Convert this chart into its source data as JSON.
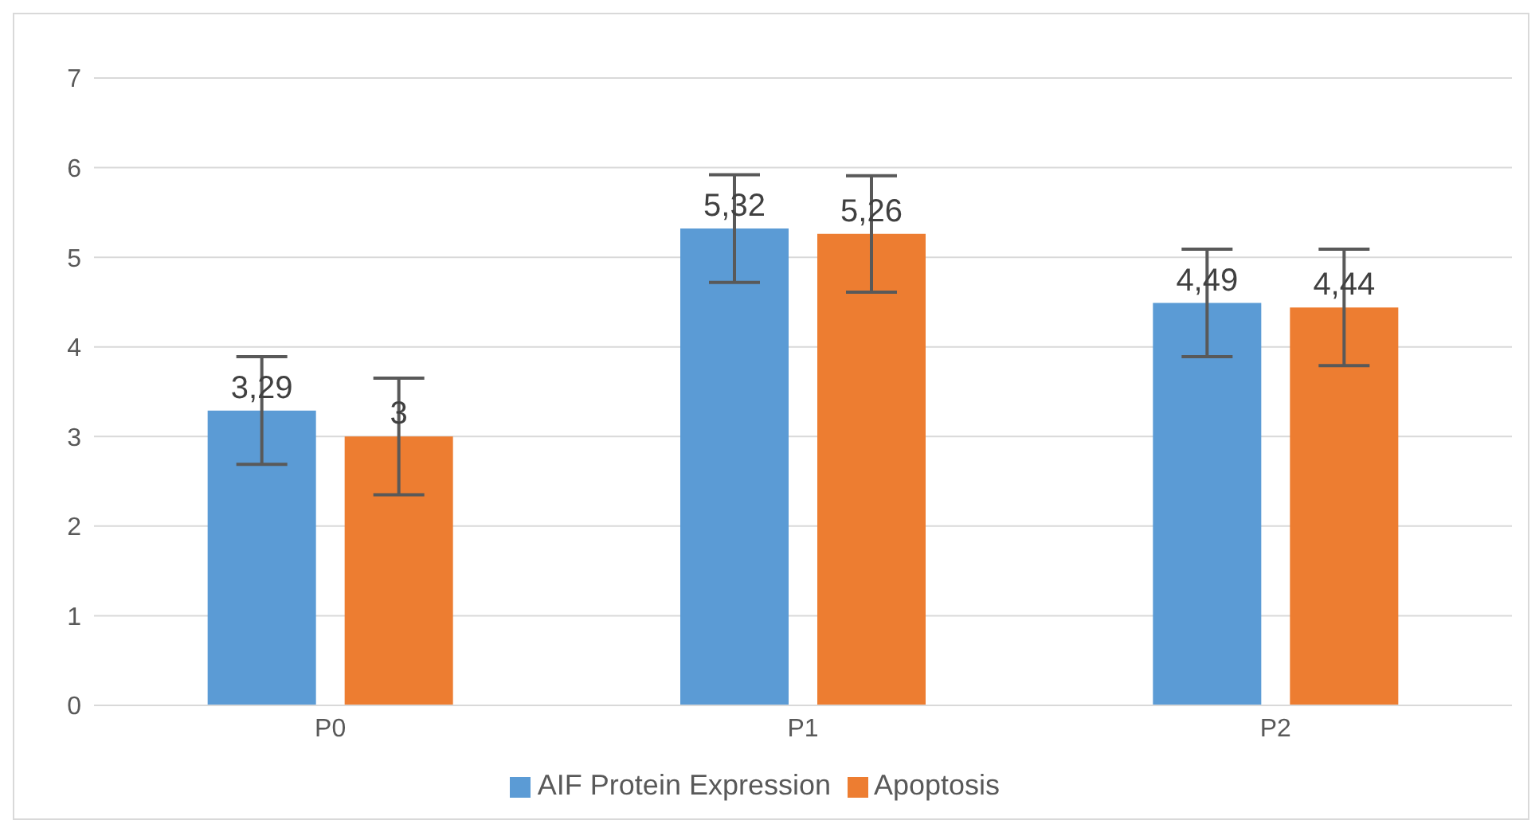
{
  "chart_data": {
    "type": "bar",
    "categories": [
      "P0",
      "P1",
      "P2"
    ],
    "series": [
      {
        "name": "AIF Protein Expression",
        "color": "#5b9bd5",
        "values": [
          3.29,
          5.32,
          4.49
        ],
        "errors": [
          0.6,
          0.6,
          0.6
        ],
        "value_labels": [
          "3,29",
          "5,32",
          "4,49"
        ]
      },
      {
        "name": "Apoptosis",
        "color": "#ed7d31",
        "values": [
          3,
          5.26,
          4.44
        ],
        "errors": [
          0.65,
          0.65,
          0.65
        ],
        "value_labels": [
          "3",
          "5,26",
          "4,44"
        ]
      }
    ],
    "ylim": [
      0,
      7
    ],
    "yticks": [
      0,
      1,
      2,
      3,
      4,
      5,
      6,
      7
    ],
    "grid": "y",
    "legend": "bottom"
  }
}
